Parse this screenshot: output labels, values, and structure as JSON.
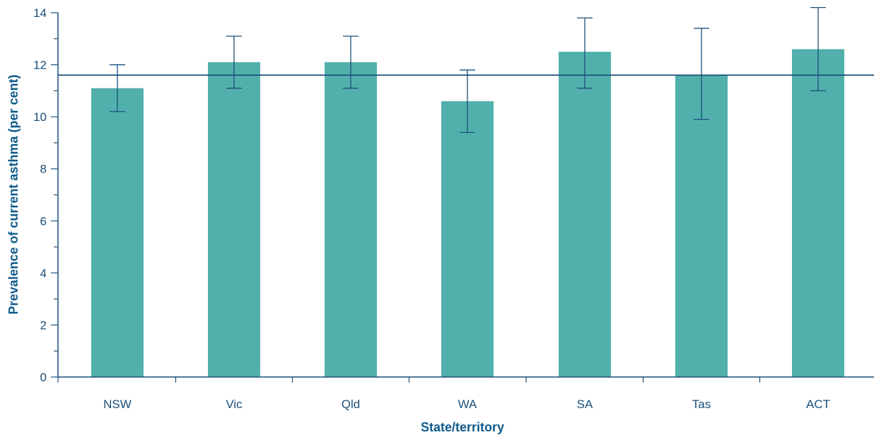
{
  "chart_data": {
    "type": "bar",
    "title": "",
    "xlabel": "State/territory",
    "ylabel": "Prevalence of current asthma (per cent)",
    "categories": [
      "NSW",
      "Vic",
      "Qld",
      "WA",
      "SA",
      "Tas",
      "ACT"
    ],
    "values": [
      11.1,
      12.1,
      12.1,
      10.6,
      12.5,
      11.6,
      12.6
    ],
    "ci_lower": [
      10.2,
      11.1,
      11.1,
      9.4,
      11.1,
      9.9,
      11.0
    ],
    "ci_upper": [
      12.0,
      13.1,
      13.1,
      11.8,
      13.8,
      13.4,
      14.2
    ],
    "reference_line": 11.6,
    "ylim": [
      0,
      14
    ],
    "yticks": [
      0,
      2,
      4,
      6,
      8,
      10,
      12,
      14
    ],
    "grid": false,
    "colors": {
      "bar": "#52b0ac",
      "axis": "#1a4f7a",
      "error_bar": "#1a4f7a",
      "reference_line": "#1a4f7a",
      "axis_title": "#0e5a8a"
    }
  }
}
